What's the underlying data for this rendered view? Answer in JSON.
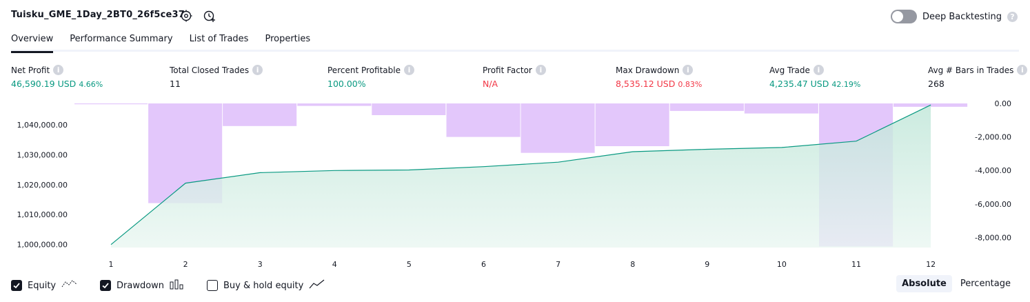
{
  "header": {
    "strategy_title": "Tuisku_GME_1Day_2BT0_26f5ce37",
    "deep_backtesting_label": "Deep Backtesting",
    "help_glyph": "?"
  },
  "tabs": [
    {
      "label": "Overview",
      "active": true
    },
    {
      "label": "Performance Summary",
      "active": false
    },
    {
      "label": "List of Trades",
      "active": false
    },
    {
      "label": "Properties",
      "active": false
    }
  ],
  "metrics": {
    "net_profit": {
      "label": "Net Profit",
      "value": "46,590.19 USD",
      "pct": "4.66%"
    },
    "total_closed_trades": {
      "label": "Total Closed Trades",
      "value": "11"
    },
    "percent_profitable": {
      "label": "Percent Profitable",
      "value": "100.00%"
    },
    "profit_factor": {
      "label": "Profit Factor",
      "value": "N/A"
    },
    "max_drawdown": {
      "label": "Max Drawdown",
      "value": "8,535.12 USD",
      "pct": "0.83%"
    },
    "avg_trade": {
      "label": "Avg Trade",
      "value": "4,235.47 USD",
      "pct": "42.19%"
    },
    "avg_bars": {
      "label": "Avg # Bars in Trades",
      "value": "268"
    }
  },
  "chart_data": {
    "type": "area",
    "x": [
      1,
      2,
      3,
      4,
      5,
      6,
      7,
      8,
      9,
      10,
      11,
      12
    ],
    "x_tick_labels": [
      "1",
      "2",
      "3",
      "4",
      "5",
      "6",
      "7",
      "8",
      "9",
      "10",
      "11",
      "12"
    ],
    "series": [
      {
        "axis": "left",
        "kind": "area-line",
        "color": "#089981",
        "values": [
          1000000,
          1020500,
          1024000,
          1024700,
          1024900,
          1026000,
          1027500,
          1031000,
          1031800,
          1032400,
          1034500,
          1046590
        ]
      },
      {
        "axis": "right",
        "kind": "bar",
        "color": "#e1c4fb",
        "bars": [
          {
            "start": 0.5,
            "end": 1.5,
            "value": -50
          },
          {
            "start": 1.5,
            "end": 2.5,
            "value": -5950
          },
          {
            "start": 2.5,
            "end": 3.5,
            "value": -1350
          },
          {
            "start": 3.5,
            "end": 4.5,
            "value": -150
          },
          {
            "start": 4.5,
            "end": 5.5,
            "value": -700
          },
          {
            "start": 5.5,
            "end": 6.5,
            "value": -2000
          },
          {
            "start": 6.5,
            "end": 7.5,
            "value": -2950
          },
          {
            "start": 7.5,
            "end": 8.5,
            "value": -2550
          },
          {
            "start": 8.5,
            "end": 9.5,
            "value": -450
          },
          {
            "start": 9.5,
            "end": 10.5,
            "value": -600
          },
          {
            "start": 10.5,
            "end": 11.5,
            "value": -8535.12
          },
          {
            "start": 11.5,
            "end": 12.5,
            "value": -200
          }
        ]
      }
    ],
    "left_ylim": [
      999000,
      1047100
    ],
    "left_ticks": [
      1000000,
      1010000,
      1020000,
      1030000,
      1040000
    ],
    "left_tick_labels": [
      "1,000,000.00",
      "1,010,000.00",
      "1,020,000.00",
      "1,030,000.00",
      "1,040,000.00"
    ],
    "right_ylim": [
      -8600,
      0
    ],
    "right_ticks": [
      0,
      -2000,
      -4000,
      -6000,
      -8000
    ],
    "right_tick_labels": [
      "0.00",
      "-2,000.00",
      "-4,000.00",
      "-6,000.00",
      "-8,000.00"
    ],
    "grid": false
  },
  "legend": {
    "equity": {
      "label": "Equity",
      "checked": true
    },
    "drawdown": {
      "label": "Drawdown",
      "checked": true
    },
    "buy_hold": {
      "label": "Buy & hold equity",
      "checked": false
    }
  },
  "scale_toggle": {
    "absolute": "Absolute",
    "percentage": "Percentage",
    "active": "absolute"
  }
}
